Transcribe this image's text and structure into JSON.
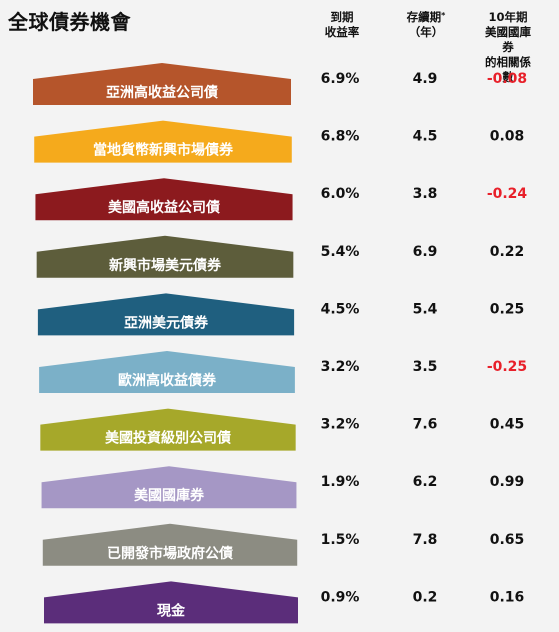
{
  "title": "全球債券機會",
  "headers": {
    "yield": [
      "到期",
      "收益率"
    ],
    "duration": [
      "存續期",
      "（年）"
    ],
    "duration_mark": "*",
    "correlation": [
      "10年期",
      "美國國庫券",
      "的相關係數"
    ]
  },
  "colors": {
    "negative": "#e8202a",
    "text": "#111111"
  },
  "chart_data": {
    "type": "table",
    "columns": [
      "到期收益率",
      "存續期*（年）",
      "10年期美國國庫券的相關係數"
    ],
    "rows": [
      {
        "name": "亞洲高收益公司債",
        "color": "#b5552b",
        "yield": "6.9%",
        "duration": "4.9",
        "correlation": "-0.08"
      },
      {
        "name": "當地貨幣新興市場債券",
        "color": "#f5aa1c",
        "yield": "6.8%",
        "duration": "4.5",
        "correlation": "0.08"
      },
      {
        "name": "美國高收益公司債",
        "color": "#8c1a1e",
        "yield": "6.0%",
        "duration": "3.8",
        "correlation": "-0.24"
      },
      {
        "name": "新興市場美元債券",
        "color": "#5d5d3b",
        "yield": "5.4%",
        "duration": "6.9",
        "correlation": "0.22"
      },
      {
        "name": "亞洲美元債券",
        "color": "#1f5f7f",
        "yield": "4.5%",
        "duration": "5.4",
        "correlation": "0.25"
      },
      {
        "name": "歐洲高收益債券",
        "color": "#7bb0c8",
        "yield": "3.2%",
        "duration": "3.5",
        "correlation": "-0.25"
      },
      {
        "name": "美國投資級別公司債",
        "color": "#a6a82a",
        "yield": "3.2%",
        "duration": "7.6",
        "correlation": "0.45"
      },
      {
        "name": "美國國庫券",
        "color": "#a597c5",
        "yield": "1.9%",
        "duration": "6.2",
        "correlation": "0.99"
      },
      {
        "name": "已開發市場政府公債",
        "color": "#8c8c82",
        "yield": "1.5%",
        "duration": "7.8",
        "correlation": "0.65"
      },
      {
        "name": "現金",
        "color": "#5b2d7a",
        "yield": "0.9%",
        "duration": "0.2",
        "correlation": "0.16"
      }
    ]
  }
}
